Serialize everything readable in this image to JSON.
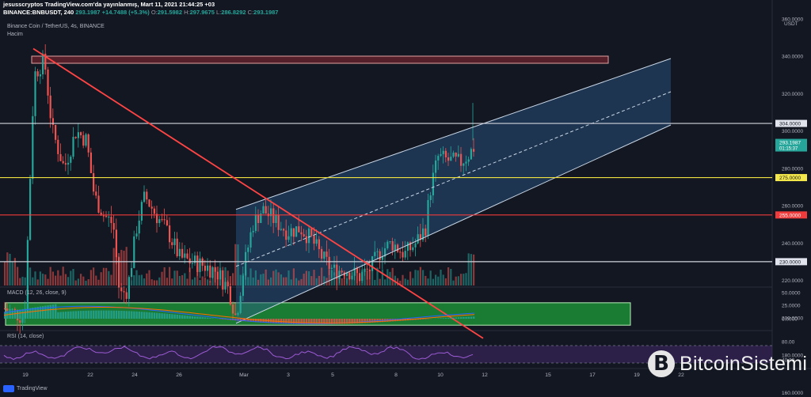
{
  "header": {
    "author_line": "jesusscryptos TradingView.com'da yayınlanmış, Mart 11, 2021 21:44:25 +03",
    "pair": "BINANCE:BNBUSDT, 240",
    "last": "293.1987",
    "change": "+14.7488 (+5.3%)",
    "o_label": "O:",
    "o": "291.5982",
    "h_label": "H:",
    "h": "297.9675",
    "l_label": "L:",
    "l": "286.8292",
    "c_label": "C:",
    "c": "293.1987"
  },
  "symbol_title": "Binance Coin / TetherUS, 4s, BINANCE",
  "volume_label": "Hacim",
  "macd_label": "MACD (12, 26, close, 9)",
  "rsi_label": "RSI (14, close)",
  "currency": "USDT",
  "footer_logo": "TradingView",
  "brand": {
    "icon": "B",
    "name": "BitcoinSistemi"
  },
  "colors": {
    "bg": "#131722",
    "up": "#26a69a",
    "down": "#ef5350",
    "channel": "#2a5a8a",
    "resistance": "#ff4444",
    "support_zone": "#1e9e3a"
  },
  "chart_data": {
    "type": "candlestick",
    "y_ticks": [
      "360.0000",
      "340.0000",
      "320.0000",
      "300.0000",
      "280.0000",
      "260.0000",
      "240.0000",
      "220.0000",
      "200.0000",
      "180.0000",
      "160.0000"
    ],
    "ylim": [
      143,
      368
    ],
    "x_ticks": [
      "19",
      "22",
      "24",
      "26",
      "Mar",
      "3",
      "5",
      "8",
      "10",
      "12",
      "15",
      "17",
      "19",
      "22"
    ],
    "levels": [
      {
        "value": 304,
        "label": "304.0000",
        "kind": "white"
      },
      {
        "value": 275,
        "label": "275.0000",
        "kind": "yellow"
      },
      {
        "value": 255,
        "label": "255.0000",
        "kind": "red"
      },
      {
        "value": 230,
        "label": "230.0000",
        "kind": "white"
      }
    ],
    "current_price": {
      "value": "293.1987",
      "countdown": "01:15:37"
    },
    "macd_ticks": [
      "50.0000",
      "25.0000",
      "0.0000"
    ],
    "rsi_ticks": [
      "80.00",
      "40.00"
    ]
  }
}
